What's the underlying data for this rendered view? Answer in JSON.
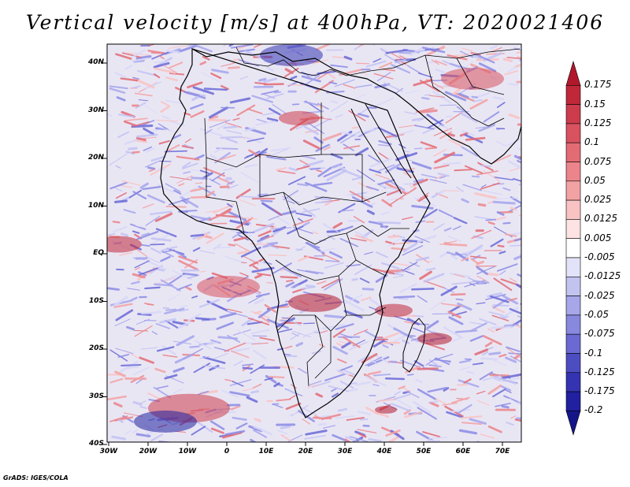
{
  "title": "Vertical velocity [m/s] at 400hPa, VT: 2020021406",
  "footer": "GrADS: IGES/COLA",
  "lat_labels": [
    "40N",
    "30N",
    "20N",
    "10N",
    "EQ",
    "10S",
    "20S",
    "30S",
    "40S"
  ],
  "lon_labels": [
    "30W",
    "20W",
    "10W",
    "0",
    "10E",
    "20E",
    "30E",
    "40E",
    "50E",
    "60E",
    "70E"
  ],
  "colorbar": {
    "labels": [
      "0.175",
      "0.15",
      "0.125",
      "0.1",
      "0.075",
      "0.05",
      "0.025",
      "0.0125",
      "0.005",
      "-0.005",
      "-0.0125",
      "-0.025",
      "-0.05",
      "-0.075",
      "-0.1",
      "-0.125",
      "-0.175",
      "-0.2"
    ],
    "colors": [
      "#b2182b",
      "#c0283a",
      "#cc3c4c",
      "#d9525f",
      "#e36b74",
      "#ec858b",
      "#f3a2a4",
      "#f9c3c3",
      "#fde3e3",
      "#ffffff",
      "#e2e2f8",
      "#c3c3f0",
      "#a6a6e8",
      "#8888de",
      "#6a6ad2",
      "#4d4dc2",
      "#3434b2",
      "#2020a0",
      "#15158a"
    ]
  },
  "map": {
    "lon_range": [
      -30,
      75
    ],
    "lat_range": [
      -40,
      45
    ]
  }
}
